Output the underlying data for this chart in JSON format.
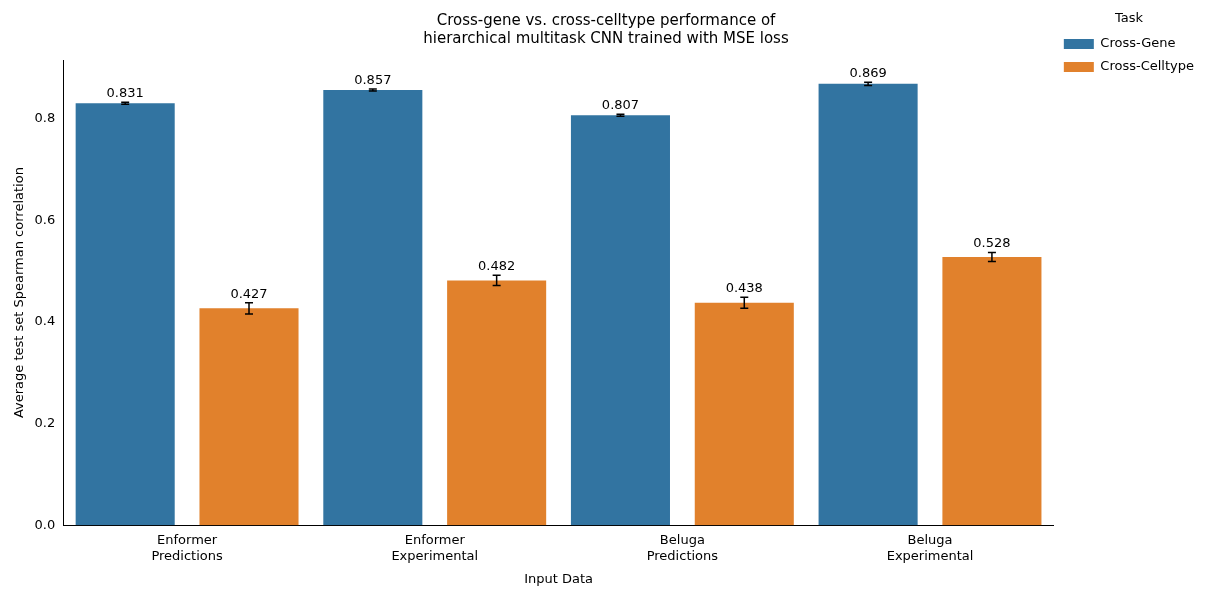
{
  "chart_data": {
    "type": "bar",
    "title": "Cross-gene vs. cross-celltype performance of\nhierarchical multitask CNN trained with MSE loss",
    "xlabel": "Input Data",
    "ylabel": "Average test set Spearman correlation",
    "legend_title": "Task",
    "categories": [
      "Enformer\nPredictions",
      "Enformer\nExperimental",
      "Beluga\nPredictions",
      "Beluga\nExperimental"
    ],
    "series": [
      {
        "name": "Cross-Gene",
        "color": "#3274a1",
        "values": [
          0.831,
          0.857,
          0.807,
          0.869
        ],
        "errors": [
          0.002,
          0.002,
          0.002,
          0.003
        ]
      },
      {
        "name": "Cross-Celltype",
        "color": "#e1812c",
        "values": [
          0.427,
          0.482,
          0.438,
          0.528
        ],
        "errors": [
          0.011,
          0.01,
          0.011,
          0.009
        ]
      }
    ],
    "ylim": [
      0,
      0.916
    ],
    "yticks": [
      {
        "value": 0,
        "label": "0.0"
      },
      {
        "value": 0.2,
        "label": "0.2"
      },
      {
        "value": 0.4,
        "label": "0.4"
      },
      {
        "value": 0.6,
        "label": "0.6"
      },
      {
        "value": 0.8,
        "label": "0.8"
      }
    ],
    "data_labels": true,
    "legend": "top right",
    "grid": false
  }
}
